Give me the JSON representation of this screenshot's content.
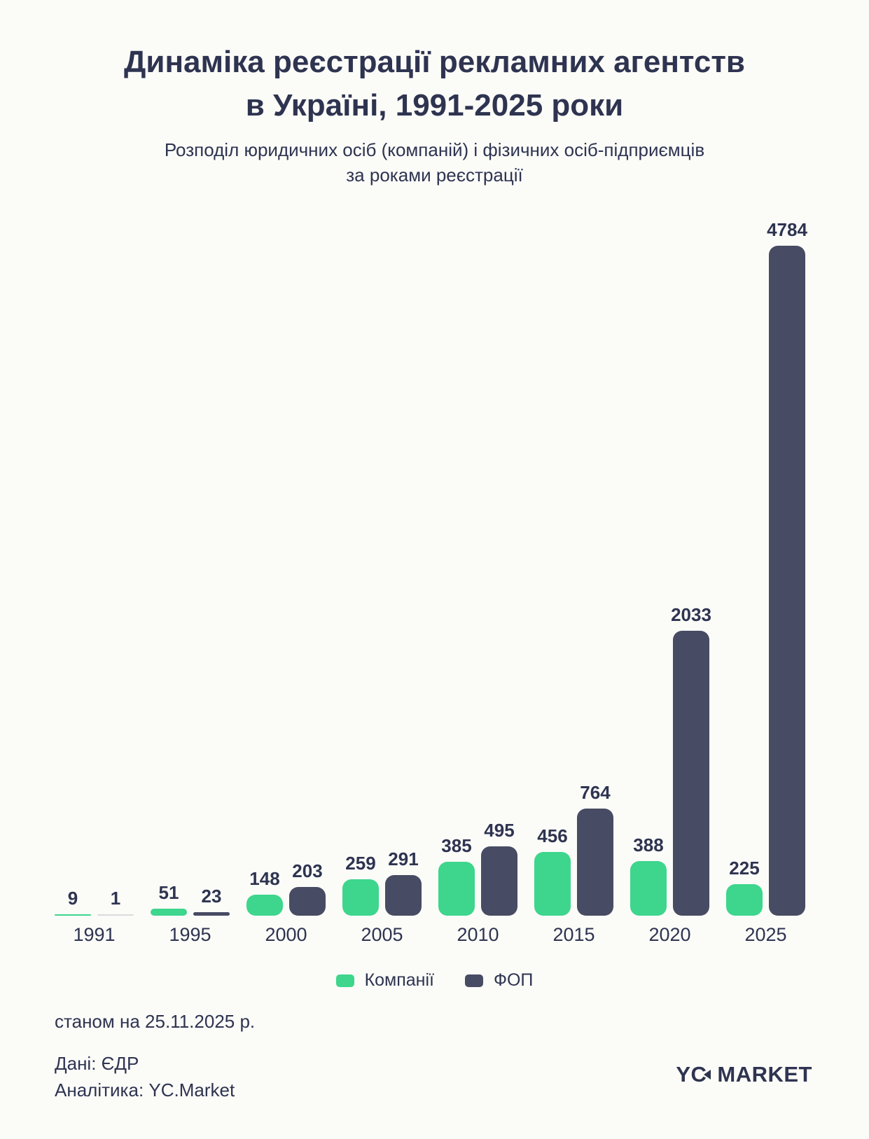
{
  "title": {
    "line1": "Динаміка реєстрації рекламних агентств",
    "line2": "в Україні, 1991-2025 роки"
  },
  "subtitle": {
    "line1": "Розподіл юридичних осіб (компаній) і фізичних осіб-підприємців",
    "line2": "за роками реєстрації"
  },
  "chart_data": {
    "type": "bar",
    "categories": [
      "1991",
      "1995",
      "2000",
      "2005",
      "2010",
      "2015",
      "2020",
      "2025"
    ],
    "series": [
      {
        "name": "Компанії",
        "color": "#3DD68C",
        "values": [
          9,
          51,
          148,
          259,
          385,
          456,
          388,
          225
        ]
      },
      {
        "name": "ФОП",
        "color": "#474B63",
        "values": [
          1,
          23,
          203,
          291,
          495,
          764,
          2033,
          4784
        ]
      }
    ],
    "value_labels": true,
    "grid": false,
    "legend_position": "bottom",
    "ylim": [
      0,
      4784
    ]
  },
  "footer": {
    "as_of": "станом на 25.11.2025 р.",
    "source": "Дані: ЄДР",
    "analytics": "Аналітика: YC.Market"
  },
  "logo": {
    "yc": "YC",
    "market": "MARKET"
  },
  "colors": {
    "background": "#FBFBF8",
    "text": "#2E3450",
    "companies": "#3DD68C",
    "fop": "#474B63"
  }
}
